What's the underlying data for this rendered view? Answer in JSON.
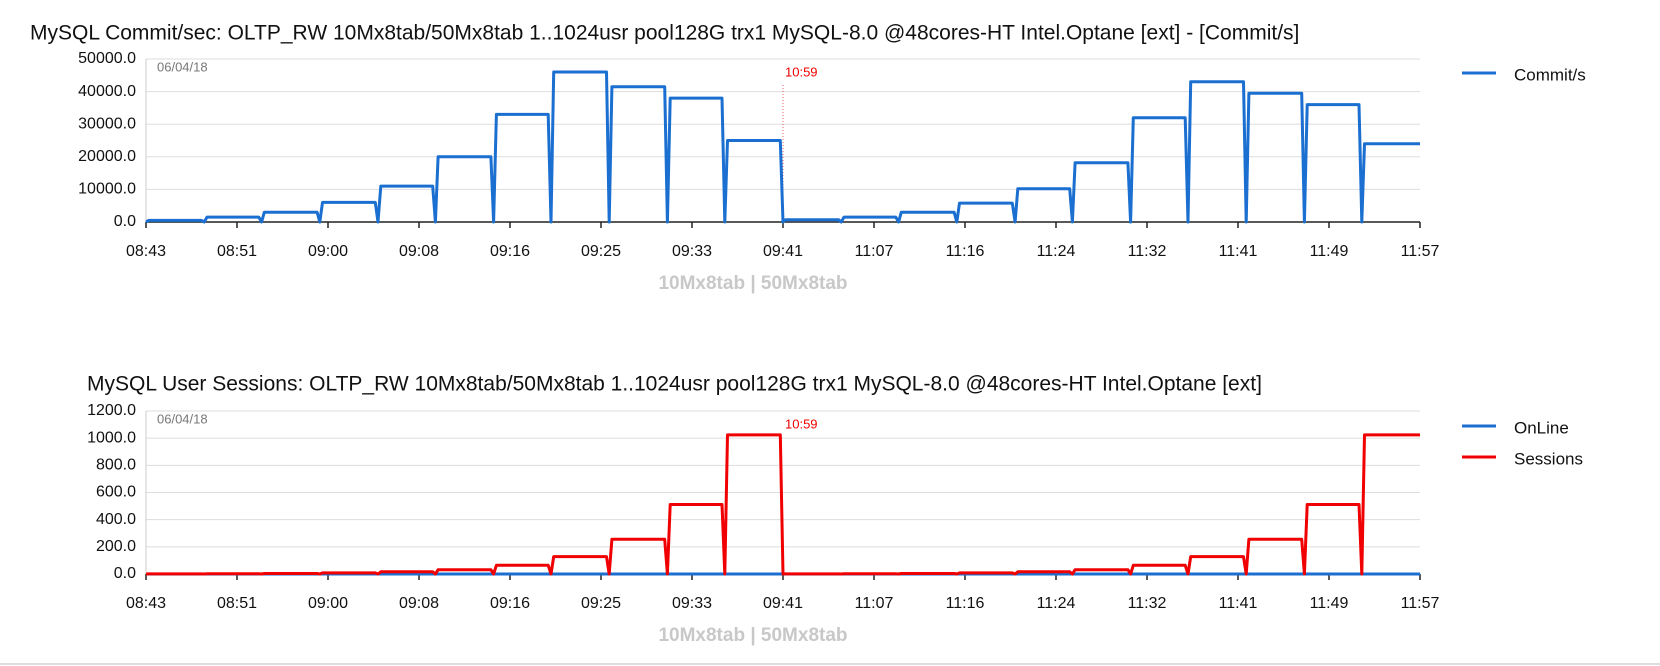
{
  "chart_data": [
    {
      "type": "line",
      "title": "MySQL Commit/sec: OLTP_RW 10Mx8tab/50Mx8tab 1..1024usr pool128G trx1 MySQL-8.0 @48cores-HT Intel.Optane [ext] - [Commit/s]",
      "date_label": "06/04/18",
      "x_label": "10Mx8tab | 50Mx8tab",
      "annotations": [
        {
          "text": "10:59",
          "x": 70
        }
      ],
      "x": [
        0,
        0.3,
        6.1,
        6.4,
        6.7,
        12.4,
        12.7,
        13.0,
        18.8,
        19.1,
        19.4,
        25.2,
        25.5,
        25.8,
        31.5,
        31.8,
        32.1,
        37.9,
        38.2,
        38.5,
        44.2,
        44.5,
        44.8,
        50.6,
        50.9,
        51.2,
        57.0,
        57.3,
        57.6,
        63.3,
        63.6,
        63.9,
        69.7,
        70,
        70.3,
        76.1,
        76.4,
        76.7,
        82.4,
        82.7,
        83.0,
        88.8,
        89.1,
        89.4,
        95.2,
        95.5,
        95.8,
        101.5,
        101.8,
        102.1,
        107.9,
        108.2,
        108.5,
        114.2,
        114.5,
        114.8,
        120.6,
        120.9,
        121.2,
        127.0,
        127.3,
        127.6,
        133.3,
        133.6,
        133.9,
        140
      ],
      "series": [
        {
          "name": "Commit/s",
          "color": "#1a6fd0",
          "values": [
            0,
            500,
            500,
            0,
            1500,
            1500,
            0,
            3000,
            3000,
            0,
            6000,
            6000,
            0,
            11000,
            11000,
            0,
            20000,
            20000,
            0,
            33000,
            33000,
            0,
            46000,
            46000,
            0,
            41500,
            41500,
            0,
            38000,
            38000,
            0,
            25000,
            25000,
            0,
            700,
            700,
            0,
            1500,
            1500,
            0,
            3000,
            3000,
            0,
            5800,
            5800,
            0,
            10200,
            10200,
            0,
            18200,
            18200,
            0,
            32000,
            32000,
            0,
            43000,
            43000,
            0,
            39500,
            39500,
            0,
            36000,
            36000,
            0,
            24000,
            24000
          ]
        }
      ],
      "xlim": [
        0,
        140
      ],
      "xticks": [
        {
          "value": 0,
          "label": "08:43"
        },
        {
          "value": 10,
          "label": "08:51"
        },
        {
          "value": 20,
          "label": "09:00"
        },
        {
          "value": 30,
          "label": "09:08"
        },
        {
          "value": 40,
          "label": "09:16"
        },
        {
          "value": 50,
          "label": "09:25"
        },
        {
          "value": 60,
          "label": "09:33"
        },
        {
          "value": 70,
          "label": "09:41"
        },
        {
          "value": 80,
          "label": "11:07"
        },
        {
          "value": 90,
          "label": "11:16"
        },
        {
          "value": 100,
          "label": "11:24"
        },
        {
          "value": 110,
          "label": "11:32"
        },
        {
          "value": 120,
          "label": "11:41"
        },
        {
          "value": 130,
          "label": "11:49"
        },
        {
          "value": 140,
          "label": "11:57"
        }
      ],
      "ylim": [
        0,
        50000
      ],
      "yticks": [
        {
          "value": 0,
          "label": "0.0"
        },
        {
          "value": 10000,
          "label": "10000.0"
        },
        {
          "value": 20000,
          "label": "20000.0"
        },
        {
          "value": 30000,
          "label": "30000.0"
        },
        {
          "value": 40000,
          "label": "40000.0"
        },
        {
          "value": 50000,
          "label": "50000.0"
        }
      ],
      "grid": true,
      "legend": "right"
    },
    {
      "type": "line",
      "title": "MySQL User Sessions: OLTP_RW 10Mx8tab/50Mx8tab 1..1024usr pool128G trx1 MySQL-8.0 @48cores-HT Intel.Optane [ext]",
      "date_label": "06/04/18",
      "x_label": "10Mx8tab | 50Mx8tab",
      "annotations": [
        {
          "text": "10:59",
          "x": 70
        }
      ],
      "x": [
        0,
        0.3,
        6.1,
        6.4,
        6.7,
        12.4,
        12.7,
        13.0,
        18.8,
        19.1,
        19.4,
        25.2,
        25.5,
        25.8,
        31.5,
        31.8,
        32.1,
        37.9,
        38.2,
        38.5,
        44.2,
        44.5,
        44.8,
        50.6,
        50.9,
        51.2,
        57.0,
        57.3,
        57.6,
        63.3,
        63.6,
        63.9,
        69.7,
        70,
        70.3,
        76.1,
        76.4,
        76.7,
        82.4,
        82.7,
        83.0,
        88.8,
        89.1,
        89.4,
        95.2,
        95.5,
        95.8,
        101.5,
        101.8,
        102.1,
        107.9,
        108.2,
        108.5,
        114.2,
        114.5,
        114.8,
        120.6,
        120.9,
        121.2,
        127.0,
        127.3,
        127.6,
        133.3,
        133.6,
        133.9,
        140
      ],
      "series": [
        {
          "name": "OnLine",
          "color": "#1a6fd0",
          "values": [
            0,
            0,
            0,
            0,
            0,
            0,
            0,
            0,
            0,
            0,
            0,
            0,
            0,
            0,
            0,
            0,
            0,
            0,
            0,
            0,
            0,
            0,
            0,
            0,
            0,
            0,
            0,
            0,
            0,
            0,
            0,
            0,
            0,
            0,
            0,
            0,
            0,
            0,
            0,
            0,
            0,
            0,
            0,
            0,
            0,
            0,
            0,
            0,
            0,
            0,
            0,
            0,
            0,
            0,
            0,
            0,
            0,
            0,
            0,
            0,
            0,
            0,
            0,
            0,
            0,
            0
          ]
        },
        {
          "name": "Sessions",
          "color": "#f00000",
          "values": [
            0,
            1,
            1,
            0,
            2,
            2,
            0,
            4,
            4,
            0,
            8,
            8,
            0,
            16,
            16,
            0,
            32,
            32,
            0,
            64,
            64,
            0,
            128,
            128,
            0,
            256,
            256,
            0,
            512,
            512,
            0,
            1024,
            1024,
            0,
            1,
            1,
            0,
            2,
            2,
            0,
            4,
            4,
            0,
            8,
            8,
            0,
            16,
            16,
            0,
            32,
            32,
            0,
            64,
            64,
            0,
            128,
            128,
            0,
            256,
            256,
            0,
            512,
            512,
            0,
            1024,
            1024
          ]
        }
      ],
      "xlim": [
        0,
        140
      ],
      "xticks": [
        {
          "value": 0,
          "label": "08:43"
        },
        {
          "value": 10,
          "label": "08:51"
        },
        {
          "value": 20,
          "label": "09:00"
        },
        {
          "value": 30,
          "label": "09:08"
        },
        {
          "value": 40,
          "label": "09:16"
        },
        {
          "value": 50,
          "label": "09:25"
        },
        {
          "value": 60,
          "label": "09:33"
        },
        {
          "value": 70,
          "label": "09:41"
        },
        {
          "value": 80,
          "label": "11:07"
        },
        {
          "value": 90,
          "label": "11:16"
        },
        {
          "value": 100,
          "label": "11:24"
        },
        {
          "value": 110,
          "label": "11:32"
        },
        {
          "value": 120,
          "label": "11:41"
        },
        {
          "value": 130,
          "label": "11:49"
        },
        {
          "value": 140,
          "label": "11:57"
        }
      ],
      "ylim": [
        0,
        1200
      ],
      "yticks": [
        {
          "value": 0,
          "label": "0.0"
        },
        {
          "value": 200,
          "label": "200.0"
        },
        {
          "value": 400,
          "label": "400.0"
        },
        {
          "value": 600,
          "label": "600.0"
        },
        {
          "value": 800,
          "label": "800.0"
        },
        {
          "value": 1000,
          "label": "1000.0"
        },
        {
          "value": 1200,
          "label": "1200.0"
        }
      ],
      "grid": true,
      "legend": "right"
    }
  ]
}
